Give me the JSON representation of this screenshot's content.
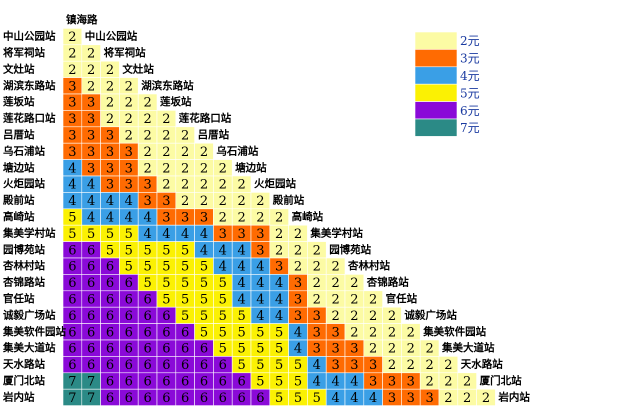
{
  "chart_data": {
    "type": "heatmap",
    "title": "",
    "stations": [
      "镇海路",
      "中山公园站",
      "将军祠站",
      "文灶站",
      "湖滨东路站",
      "莲坂站",
      "莲花路口站",
      "吕厝站",
      "乌石浦站",
      "塘边站",
      "火炬园站",
      "殿前站",
      "高崎站",
      "集美学村站",
      "园博苑站",
      "杏林村站",
      "杏锦路站",
      "官任站",
      "诚毅广场站",
      "集美软件园站",
      "集美大道站",
      "天水路站",
      "厦门北站",
      "岩内站"
    ],
    "matrix": [
      [],
      [
        2
      ],
      [
        2,
        2
      ],
      [
        2,
        2,
        2
      ],
      [
        3,
        2,
        2,
        2
      ],
      [
        3,
        3,
        2,
        2,
        2
      ],
      [
        3,
        3,
        2,
        2,
        2,
        2
      ],
      [
        3,
        3,
        3,
        2,
        2,
        2,
        2
      ],
      [
        3,
        3,
        3,
        3,
        2,
        2,
        2,
        2
      ],
      [
        4,
        3,
        3,
        3,
        2,
        2,
        2,
        2,
        2
      ],
      [
        4,
        4,
        3,
        3,
        3,
        2,
        2,
        2,
        2,
        2
      ],
      [
        4,
        4,
        4,
        4,
        3,
        3,
        2,
        2,
        2,
        2,
        2
      ],
      [
        5,
        4,
        4,
        4,
        4,
        3,
        3,
        3,
        2,
        2,
        2,
        2
      ],
      [
        5,
        5,
        5,
        5,
        4,
        4,
        4,
        4,
        3,
        3,
        3,
        2,
        2
      ],
      [
        6,
        6,
        5,
        5,
        5,
        5,
        5,
        4,
        4,
        4,
        3,
        2,
        2,
        2
      ],
      [
        6,
        6,
        6,
        5,
        5,
        5,
        5,
        5,
        4,
        4,
        4,
        3,
        2,
        2,
        2
      ],
      [
        6,
        6,
        6,
        6,
        5,
        5,
        5,
        5,
        5,
        4,
        4,
        4,
        3,
        2,
        2,
        2
      ],
      [
        6,
        6,
        6,
        6,
        6,
        5,
        5,
        5,
        5,
        4,
        4,
        4,
        3,
        2,
        2,
        2,
        2
      ],
      [
        6,
        6,
        6,
        6,
        6,
        6,
        5,
        5,
        5,
        5,
        4,
        4,
        3,
        3,
        2,
        2,
        2,
        2
      ],
      [
        6,
        6,
        6,
        6,
        6,
        6,
        6,
        5,
        5,
        5,
        5,
        5,
        4,
        3,
        3,
        2,
        2,
        2,
        2
      ],
      [
        6,
        6,
        6,
        6,
        6,
        6,
        6,
        6,
        5,
        5,
        5,
        5,
        4,
        3,
        3,
        3,
        2,
        2,
        2,
        2
      ],
      [
        6,
        6,
        6,
        6,
        6,
        6,
        6,
        6,
        6,
        5,
        5,
        5,
        5,
        4,
        3,
        3,
        3,
        2,
        2,
        2,
        2
      ],
      [
        7,
        7,
        6,
        6,
        6,
        6,
        6,
        6,
        6,
        6,
        5,
        5,
        5,
        4,
        4,
        4,
        3,
        3,
        3,
        2,
        2,
        2
      ],
      [
        7,
        7,
        6,
        6,
        6,
        6,
        6,
        6,
        6,
        6,
        6,
        5,
        5,
        5,
        4,
        4,
        4,
        3,
        3,
        3,
        2,
        2,
        2
      ]
    ],
    "fare_colors": {
      "2": "#fcfba4",
      "3": "#ff6b02",
      "4": "#3a9fe6",
      "5": "#fbf103",
      "6": "#8a0ad8",
      "7": "#2b8a86"
    },
    "legend": [
      {
        "fare": 2,
        "label": "2元",
        "color": "#fcfba4"
      },
      {
        "fare": 3,
        "label": "3元",
        "color": "#ff6b02"
      },
      {
        "fare": 4,
        "label": "4元",
        "color": "#3a9fe6"
      },
      {
        "fare": 5,
        "label": "5元",
        "color": "#fbf103"
      },
      {
        "fare": 6,
        "label": "6元",
        "color": "#8a0ad8"
      },
      {
        "fare": 7,
        "label": "7元",
        "color": "#2b8a86"
      }
    ],
    "legend_position": "top-right",
    "grid": true
  }
}
